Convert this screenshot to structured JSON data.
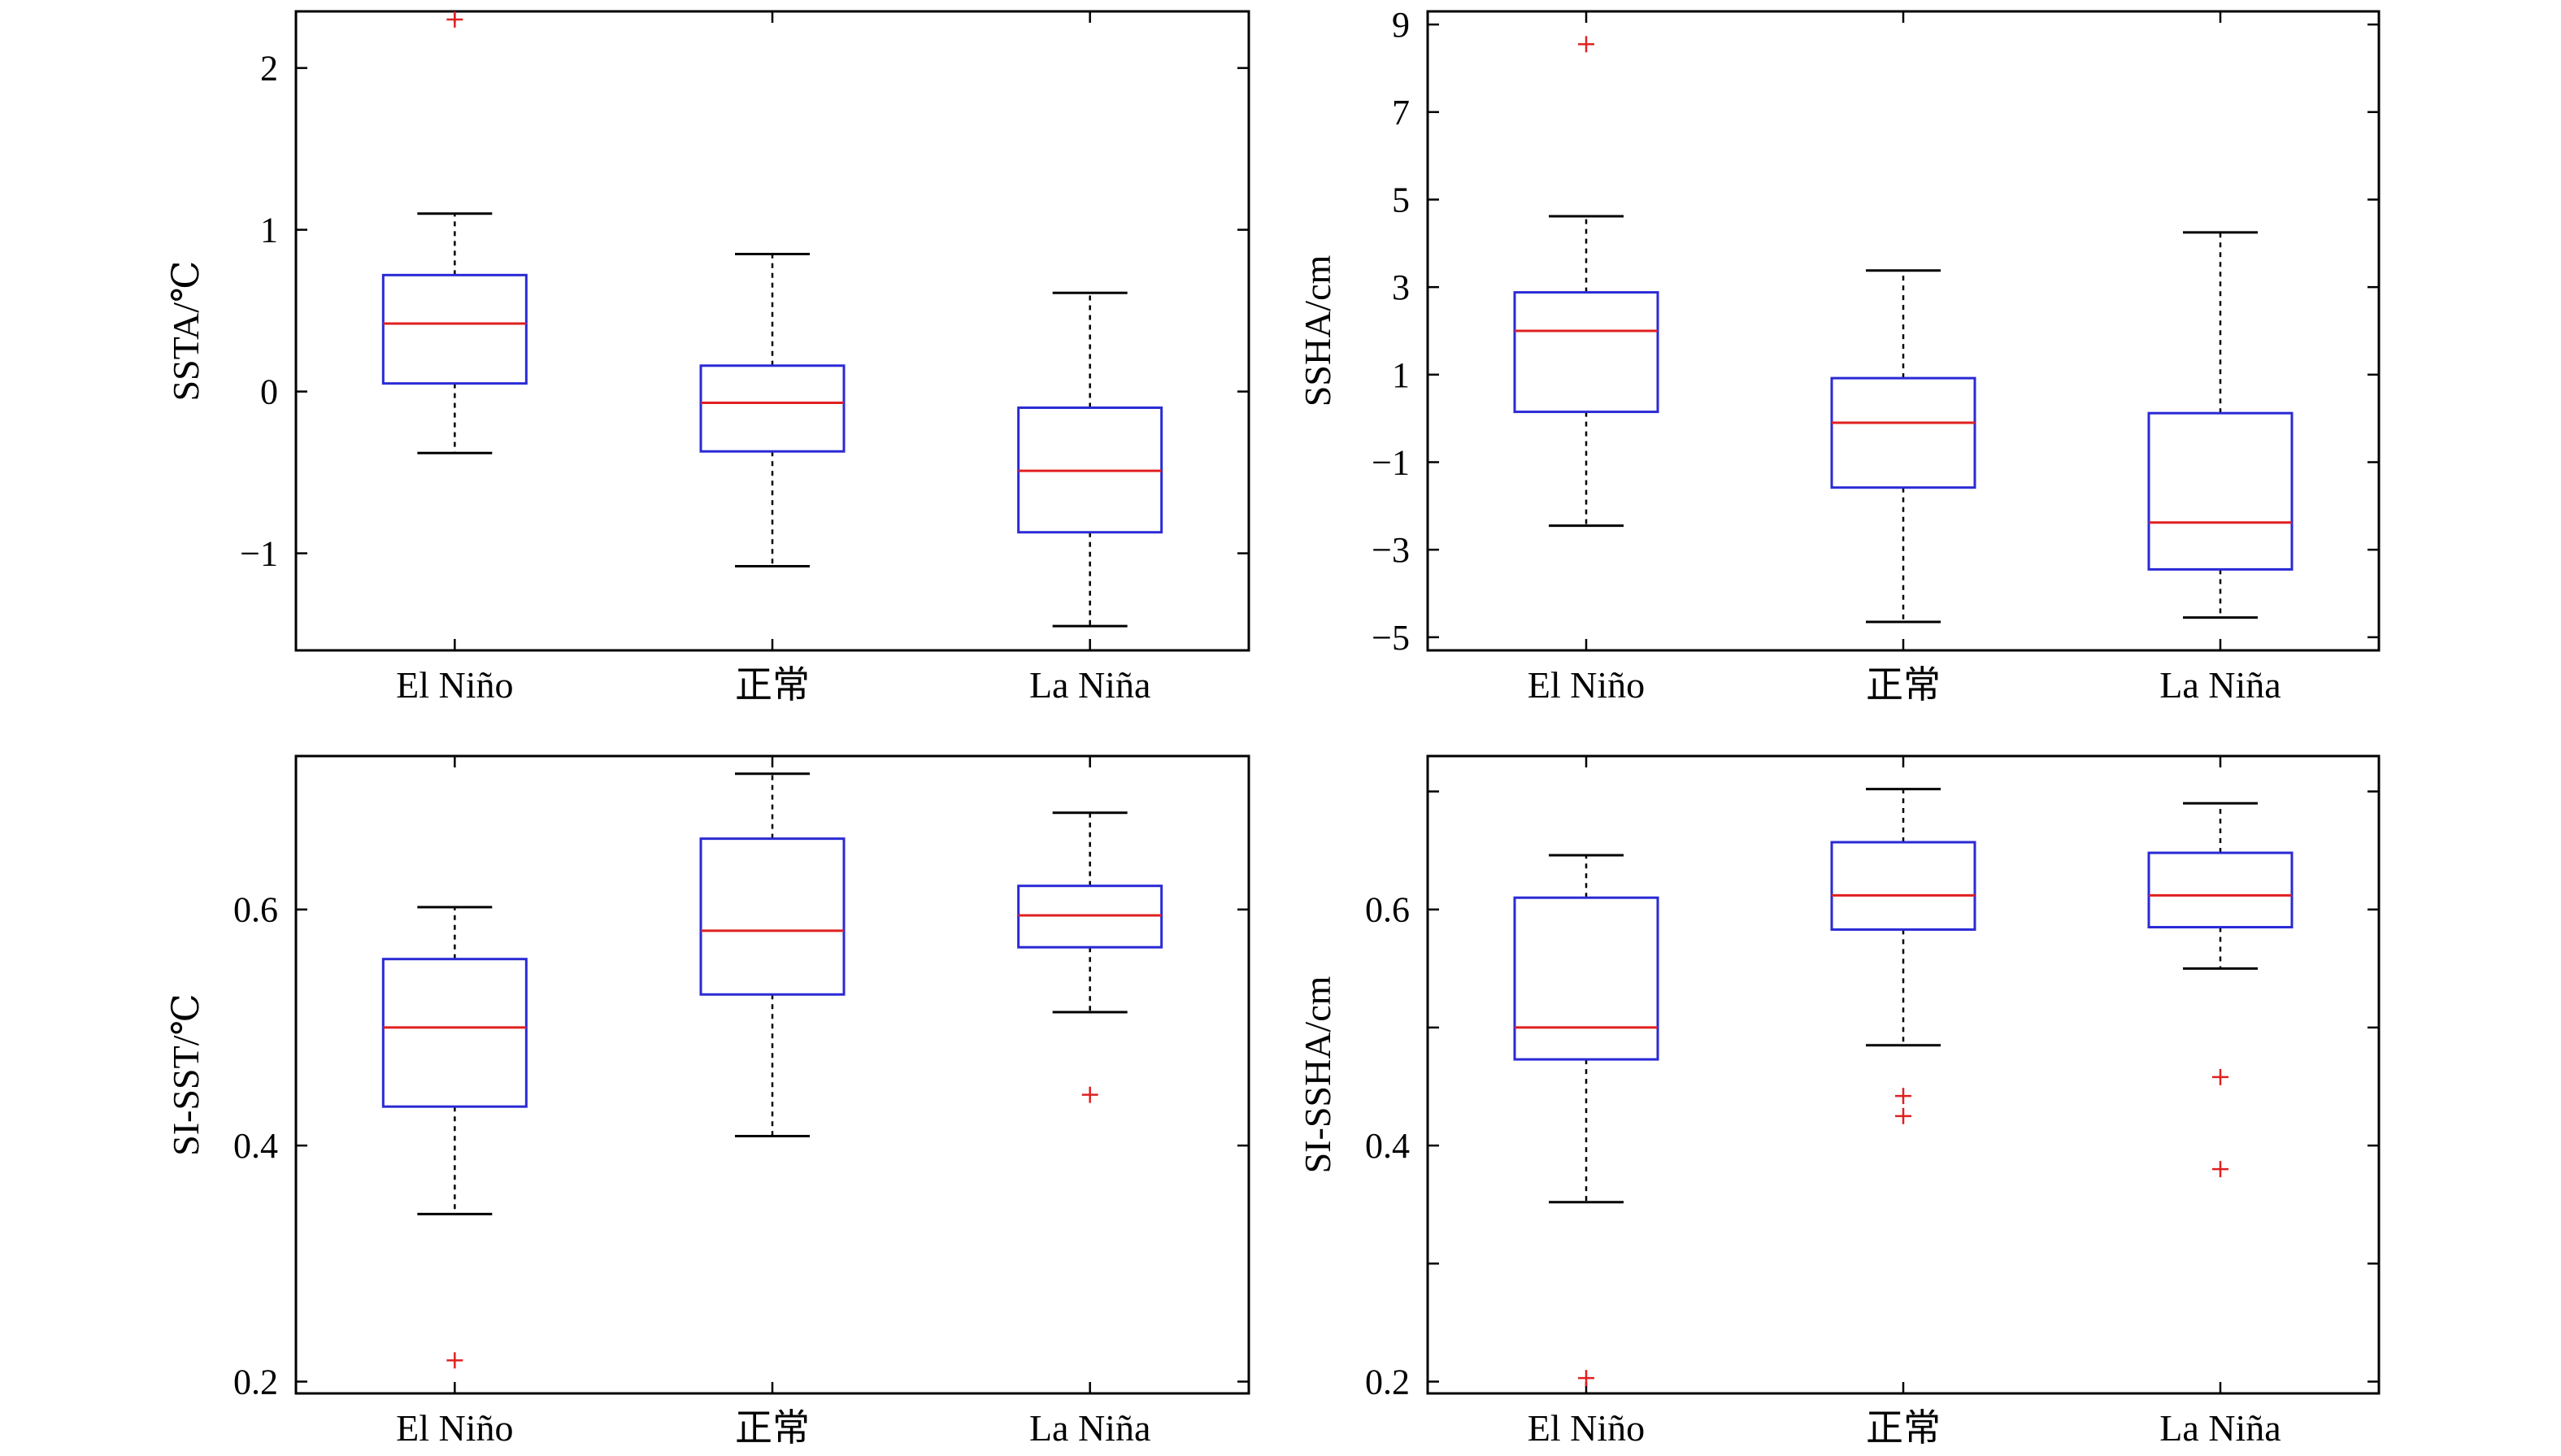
{
  "chart_data": [
    {
      "type": "box",
      "ylabel": "SSTA/℃",
      "categories": [
        "El Niño",
        "正常",
        "La Niña"
      ],
      "ylim": [
        -1.6,
        2.35
      ],
      "yticks": [
        -1,
        0,
        1,
        2
      ],
      "yticklabels": [
        "−1",
        "0",
        "1",
        "2"
      ],
      "boxes": [
        {
          "whisker_low": -0.38,
          "q1": 0.05,
          "median": 0.42,
          "q3": 0.72,
          "whisker_high": 1.1,
          "outliers": [
            2.3
          ]
        },
        {
          "whisker_low": -1.08,
          "q1": -0.37,
          "median": -0.07,
          "q3": 0.16,
          "whisker_high": 0.85,
          "outliers": []
        },
        {
          "whisker_low": -1.45,
          "q1": -0.87,
          "median": -0.49,
          "q3": -0.1,
          "whisker_high": 0.61,
          "outliers": []
        }
      ]
    },
    {
      "type": "box",
      "ylabel": "SSHA/cm",
      "categories": [
        "El Niño",
        "正常",
        "La Niña"
      ],
      "ylim": [
        -5.3,
        9.3
      ],
      "yticks": [
        -5,
        -3,
        -1,
        1,
        3,
        5,
        7,
        9
      ],
      "yticklabels": [
        "−5",
        "−3",
        "−1",
        "1",
        "3",
        "5",
        "7",
        "9"
      ],
      "boxes": [
        {
          "whisker_low": -2.45,
          "q1": 0.15,
          "median": 2.0,
          "q3": 2.88,
          "whisker_high": 4.62,
          "outliers": [
            8.55
          ]
        },
        {
          "whisker_low": -4.65,
          "q1": -1.58,
          "median": -0.1,
          "q3": 0.92,
          "whisker_high": 3.38,
          "outliers": []
        },
        {
          "whisker_low": -4.55,
          "q1": -3.45,
          "median": -2.38,
          "q3": 0.12,
          "whisker_high": 4.25,
          "outliers": []
        }
      ]
    },
    {
      "type": "box",
      "ylabel": "SI-SST/℃",
      "categories": [
        "El Niño",
        "正常",
        "La Niña"
      ],
      "ylim": [
        0.19,
        0.73
      ],
      "yticks": [
        0.2,
        0.4,
        0.6
      ],
      "yticklabels": [
        "0.2",
        "0.4",
        "0.6"
      ],
      "boxes": [
        {
          "whisker_low": 0.342,
          "q1": 0.433,
          "median": 0.5,
          "q3": 0.558,
          "whisker_high": 0.602,
          "outliers": [
            0.218
          ]
        },
        {
          "whisker_low": 0.408,
          "q1": 0.528,
          "median": 0.582,
          "q3": 0.66,
          "whisker_high": 0.715,
          "outliers": []
        },
        {
          "whisker_low": 0.513,
          "q1": 0.568,
          "median": 0.595,
          "q3": 0.62,
          "whisker_high": 0.682,
          "outliers": [
            0.443
          ]
        }
      ]
    },
    {
      "type": "box",
      "ylabel": "SI-SSHA/cm",
      "categories": [
        "El Niño",
        "正常",
        "La Niña"
      ],
      "ylim": [
        0.19,
        0.73
      ],
      "yticks": [
        0.2,
        0.3,
        0.4,
        0.5,
        0.6,
        0.7
      ],
      "yticklabels": [
        "0.2",
        "",
        "0.4",
        "",
        "0.6",
        ""
      ],
      "boxes": [
        {
          "whisker_low": 0.352,
          "q1": 0.473,
          "median": 0.5,
          "q3": 0.61,
          "whisker_high": 0.646,
          "outliers": [
            0.203
          ]
        },
        {
          "whisker_low": 0.485,
          "q1": 0.583,
          "median": 0.612,
          "q3": 0.657,
          "whisker_high": 0.702,
          "outliers": [
            0.442,
            0.425
          ]
        },
        {
          "whisker_low": 0.55,
          "q1": 0.585,
          "median": 0.612,
          "q3": 0.648,
          "whisker_high": 0.69,
          "outliers": [
            0.458,
            0.38
          ]
        }
      ]
    }
  ],
  "colors": {
    "box": "#2a2ad6",
    "median": "#e02020",
    "whisker": "#000000",
    "outlier": "#e02020",
    "axis": "#000000"
  }
}
